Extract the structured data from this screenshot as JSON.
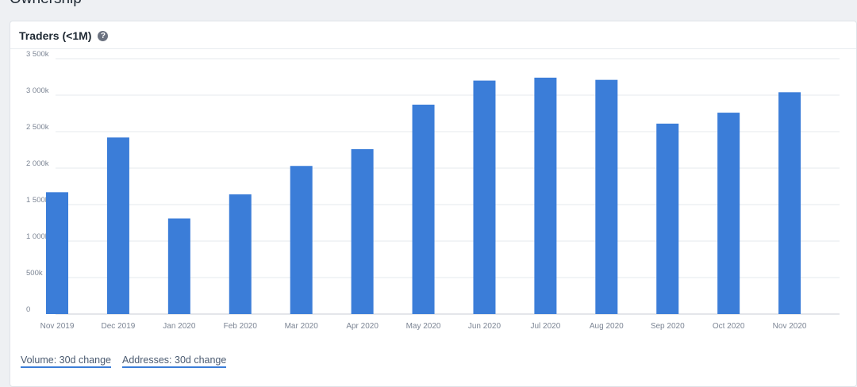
{
  "section": {
    "title": "Ownership"
  },
  "card": {
    "title": "Traders (<1M)",
    "help_icon": "question-circle-icon"
  },
  "footer": {
    "links": [
      "Volume: 30d change",
      "Addresses: 30d change"
    ]
  },
  "colors": {
    "bar": "#3b7dd8",
    "grid": "#e4e8ee",
    "tick_text": "#7c8594"
  },
  "chart_data": {
    "type": "bar",
    "title": "Traders (<1M)",
    "xlabel": "",
    "ylabel": "",
    "categories": [
      "Nov 2019",
      "Dec 2019",
      "Jan 2020",
      "Feb 2020",
      "Mar 2020",
      "Apr 2020",
      "May 2020",
      "Jun 2020",
      "Jul 2020",
      "Aug 2020",
      "Sep 2020",
      "Oct 2020",
      "Nov 2020"
    ],
    "values": [
      1670000,
      2420000,
      1310000,
      1640000,
      2030000,
      2260000,
      2870000,
      3200000,
      3240000,
      3210000,
      2610000,
      2760000,
      3040000
    ],
    "ylim": [
      0,
      3500000
    ],
    "yticks": [
      0,
      500000,
      1000000,
      1500000,
      2000000,
      2500000,
      3000000,
      3500000
    ],
    "ytick_labels": [
      "0",
      "500k",
      "1 000k",
      "1 500k",
      "2 000k",
      "2 500k",
      "3 000k",
      "3 500k"
    ],
    "grid": true,
    "legend": "none"
  }
}
